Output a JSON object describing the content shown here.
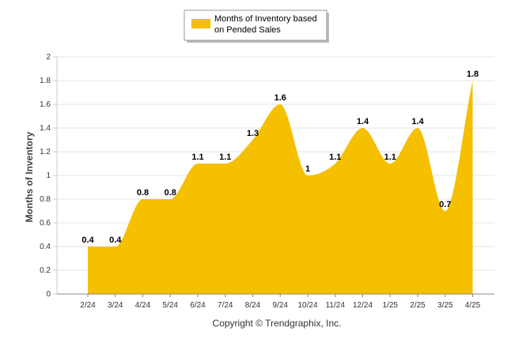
{
  "chart_data": {
    "type": "area",
    "categories": [
      "2/24",
      "3/24",
      "4/24",
      "5/24",
      "6/24",
      "7/24",
      "8/24",
      "9/24",
      "10/24",
      "11/24",
      "12/24",
      "1/25",
      "2/25",
      "3/25",
      "4/25"
    ],
    "series": [
      {
        "name": "Months of Inventory based on Pended Sales",
        "values": [
          0.4,
          0.4,
          0.8,
          0.8,
          1.1,
          1.1,
          1.3,
          1.6,
          1,
          1.1,
          1.4,
          1.1,
          1.4,
          0.7,
          1.8
        ],
        "color": "#F5C000"
      }
    ],
    "data_labels": [
      "0.4",
      "0.4",
      "0.8",
      "0.8",
      "1.1",
      "1.1",
      "1.3",
      "1.6",
      "1",
      "1.1",
      "1.4",
      "1.1",
      "1.4",
      "0.7",
      "1.8"
    ],
    "ylabel": "Months of Inventory",
    "xlabel": "",
    "ylim": [
      0,
      2
    ],
    "yticks": [
      "0",
      "0.2",
      "0.4",
      "0.6",
      "0.8",
      "1",
      "1.2",
      "1.4",
      "1.6",
      "1.8",
      "2"
    ],
    "grid": true,
    "legend": {
      "position": "top-center",
      "line1": "Months of Inventory based",
      "line2": "on Pended Sales"
    }
  },
  "footer": {
    "copyright": "Copyright © Trendgraphix, Inc."
  }
}
